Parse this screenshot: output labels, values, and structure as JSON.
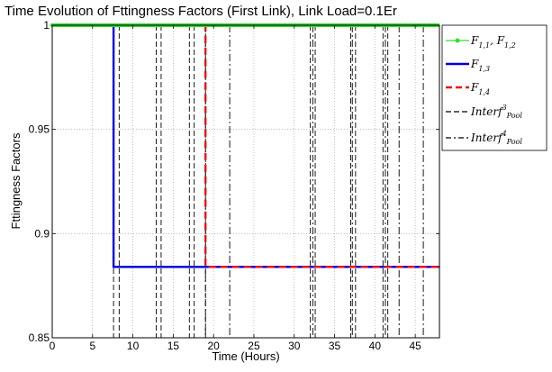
{
  "chart_data": {
    "type": "line",
    "title": "Time Evolution of Fttingness Factors (First Link), Link Load=0.1Er",
    "xlabel": "Time (Hours)",
    "ylabel": "Fttingness Factors",
    "xlim": [
      0,
      48
    ],
    "ylim": [
      0.85,
      1.0
    ],
    "xticks": [
      0,
      5,
      10,
      15,
      20,
      25,
      30,
      35,
      40,
      45
    ],
    "yticks": [
      0.85,
      0.9,
      0.95,
      1.0
    ],
    "ytick_labels": [
      "0.85",
      "0.9",
      "0.95",
      "1"
    ],
    "grid": "dotted",
    "legend_position": "right-outside",
    "series": [
      {
        "name": "F1,1, F1,2",
        "label_main": "F",
        "label_sub": "1,1",
        "label_sep": ", ",
        "label_main2": "F",
        "label_sub2": "1,2",
        "color": "#33dd33",
        "style": "solid-marker",
        "x": [
          0,
          48
        ],
        "y": [
          1.0,
          1.0
        ]
      },
      {
        "name": "F1,3",
        "label_main": "F",
        "label_sub": "1,3",
        "color": "#0000dd",
        "style": "solid",
        "x": [
          0,
          7.6,
          7.6,
          48
        ],
        "y": [
          1.0,
          1.0,
          0.884,
          0.884
        ]
      },
      {
        "name": "F1,4",
        "label_main": "F",
        "label_sub": "1,4",
        "color": "#ee1111",
        "style": "dashed",
        "x": [
          0,
          19.0,
          19.0,
          48
        ],
        "y": [
          1.0,
          1.0,
          0.884,
          0.884
        ]
      },
      {
        "name": "Interf3Pool",
        "label_main": "Interf",
        "label_sup": "3",
        "label_sub": "Pool",
        "color": "#000000",
        "style": "dashed",
        "x_events": [
          7.6,
          8.3,
          12.9,
          13.5,
          17.0,
          17.6,
          19.0,
          32.0,
          32.6,
          37.0,
          37.6,
          41.0,
          41.6
        ]
      },
      {
        "name": "Interf4Pool",
        "label_main": "Interf",
        "label_sup": "4",
        "label_sub": "Pool",
        "color": "#000000",
        "style": "dashdot",
        "x_events": [
          19.0,
          22.0,
          32.3,
          37.2,
          41.3,
          43.0,
          46.0
        ]
      }
    ]
  }
}
